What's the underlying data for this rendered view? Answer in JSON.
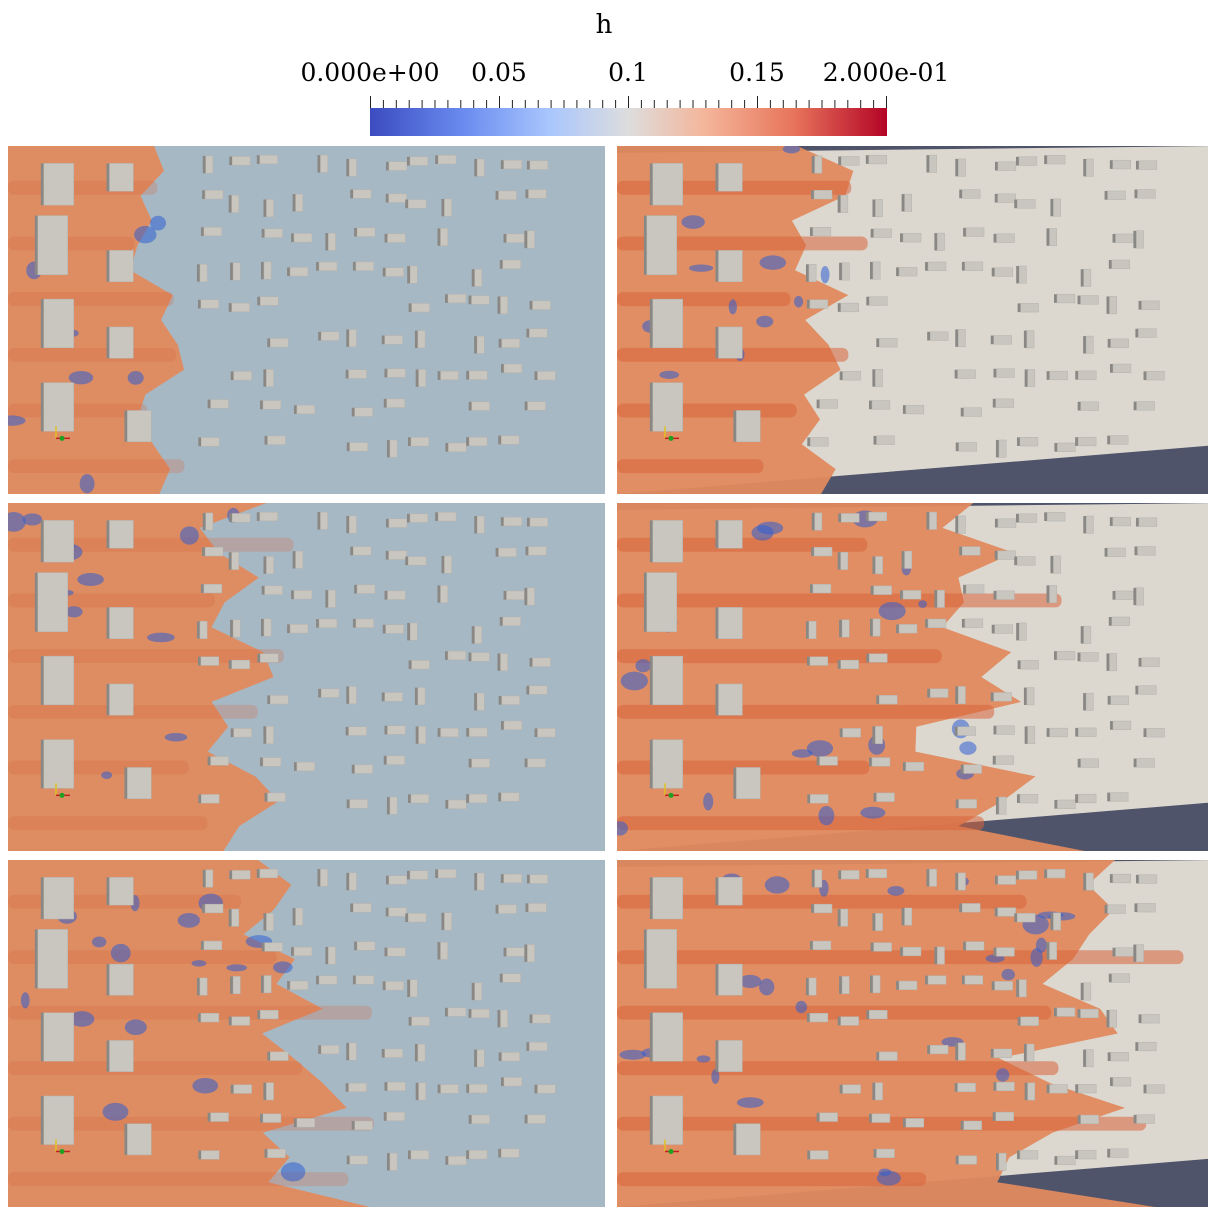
{
  "colorbar": {
    "title": "h",
    "labels": [
      "0.000e+00",
      "0.05",
      "0.1",
      "0.15",
      "2.000e-01"
    ],
    "label_values": [
      0,
      0.05,
      0.1,
      0.15,
      0.2
    ],
    "min": 0,
    "max": 0.2,
    "colors": [
      "#3b4cc0",
      "#aac7fd",
      "#dddddd",
      "#f4b599",
      "#b40426"
    ]
  },
  "panels": [
    {
      "id": "top-left",
      "style": "flat",
      "flood_front": 0.27
    },
    {
      "id": "top-right",
      "style": "3d",
      "flood_front": 0.38
    },
    {
      "id": "middle-left",
      "style": "flat",
      "flood_front": 0.42
    },
    {
      "id": "middle-right",
      "style": "3d",
      "flood_front": 0.65
    },
    {
      "id": "bottom-left",
      "style": "flat",
      "flood_front": 0.52
    },
    {
      "id": "bottom-right",
      "style": "3d",
      "flood_front": 0.8
    }
  ],
  "palette": {
    "water": "#e08a5e",
    "water_dark": "#d9643a",
    "shallow": "#2f5fd0",
    "dry_flat": "#a7b8c5",
    "dry_3d": "#dcd8d0",
    "building": "#c9c6c0",
    "building_side": "#8a8884",
    "background_3d": "#50546a"
  }
}
